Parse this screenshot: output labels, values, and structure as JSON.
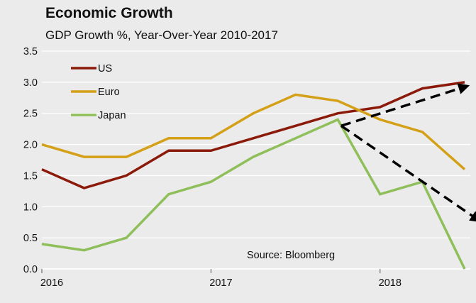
{
  "chart_data": {
    "type": "line",
    "title": "Economic Growth",
    "subtitle": "GDP Growth %, Year-Over-Year 2010-2017",
    "xlabel": "",
    "ylabel": "",
    "x": [
      2016.0,
      2016.25,
      2016.5,
      2016.75,
      2017.0,
      2017.25,
      2017.5,
      2017.75,
      2018.0,
      2018.25,
      2018.5
    ],
    "xticks": [
      "2016",
      "2017",
      "2018"
    ],
    "xtick_values": [
      2016,
      2017,
      2018
    ],
    "xlim": [
      2016,
      2018.5
    ],
    "ylim": [
      0.0,
      3.5
    ],
    "yticks": [
      "0.0",
      "0.5",
      "1.0",
      "1.5",
      "2.0",
      "2.5",
      "3.0",
      "3.5"
    ],
    "grid": "horizontal",
    "legend_position": "top-left",
    "series": [
      {
        "name": "US",
        "color": "#8b1a0a",
        "values": [
          1.6,
          1.3,
          1.5,
          1.9,
          1.9,
          2.1,
          2.3,
          2.5,
          2.6,
          2.9,
          3.0
        ]
      },
      {
        "name": "Euro",
        "color": "#d4a017",
        "values": [
          2.0,
          1.8,
          1.8,
          2.1,
          2.1,
          2.5,
          2.8,
          2.7,
          2.4,
          2.2,
          1.6
        ]
      },
      {
        "name": "Japan",
        "color": "#8fbf5a",
        "values": [
          0.4,
          0.3,
          0.5,
          1.2,
          1.4,
          1.8,
          2.1,
          2.4,
          1.2,
          1.4,
          0.0
        ]
      }
    ],
    "annotations": {
      "source": "Source:  Bloomberg",
      "trend_arrows": [
        {
          "from": [
            2017.77,
            2.3
          ],
          "to": [
            2018.53,
            2.95
          ]
        },
        {
          "from": [
            2017.77,
            2.3
          ],
          "to": [
            2018.6,
            0.75
          ]
        }
      ]
    }
  }
}
